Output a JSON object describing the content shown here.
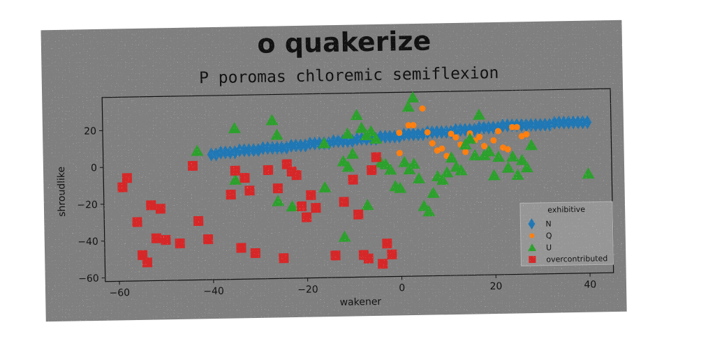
{
  "chart_data": {
    "type": "scatter",
    "title": "o quakerize",
    "subtitle": "P poromas chloremic semiflexion",
    "xlabel": "wakener",
    "ylabel": "shroudlike",
    "xlim": [
      -63,
      45
    ],
    "ylim": [
      -62,
      38
    ],
    "xticks": [
      -60,
      -40,
      -20,
      0,
      20,
      40
    ],
    "yticks": [
      -60,
      -40,
      -20,
      0,
      20
    ],
    "grid": false,
    "legend": {
      "title": "exhibitive",
      "placement": "lower-right"
    },
    "series": [
      {
        "name": "N",
        "marker": "diamond",
        "color": "#1f77b4",
        "points": [
          [
            -40,
            6
          ],
          [
            -39,
            6
          ],
          [
            -38,
            7
          ],
          [
            -37,
            7
          ],
          [
            -36,
            7
          ],
          [
            -35,
            7
          ],
          [
            -34,
            8
          ],
          [
            -33,
            8
          ],
          [
            -32,
            8
          ],
          [
            -31,
            8
          ],
          [
            -30,
            8
          ],
          [
            -29,
            9
          ],
          [
            -28,
            9
          ],
          [
            -27,
            9
          ],
          [
            -26,
            9
          ],
          [
            -25,
            9
          ],
          [
            -24,
            9
          ],
          [
            -23,
            10
          ],
          [
            -22,
            10
          ],
          [
            -21,
            10
          ],
          [
            -20,
            10
          ],
          [
            -19,
            11
          ],
          [
            -18,
            11
          ],
          [
            -17,
            11
          ],
          [
            -16,
            11
          ],
          [
            -15,
            11
          ],
          [
            -14,
            12
          ],
          [
            -13,
            12
          ],
          [
            -12,
            12
          ],
          [
            -11,
            12
          ],
          [
            -10,
            12
          ],
          [
            -9,
            13
          ],
          [
            -8,
            13
          ],
          [
            -7,
            13
          ],
          [
            -6,
            13
          ],
          [
            -5,
            13
          ],
          [
            -4,
            14
          ],
          [
            -3,
            14
          ],
          [
            -2,
            14
          ],
          [
            -1,
            14
          ],
          [
            0,
            14
          ],
          [
            1,
            15
          ],
          [
            2,
            15
          ],
          [
            3,
            15
          ],
          [
            4,
            15
          ],
          [
            5,
            15
          ],
          [
            6,
            16
          ],
          [
            7,
            16
          ],
          [
            8,
            16
          ],
          [
            9,
            16
          ],
          [
            10,
            16
          ],
          [
            11,
            16
          ],
          [
            12,
            17
          ],
          [
            13,
            17
          ],
          [
            14,
            17
          ],
          [
            15,
            17
          ],
          [
            16,
            17
          ],
          [
            17,
            18
          ],
          [
            18,
            18
          ],
          [
            19,
            18
          ],
          [
            20,
            18
          ],
          [
            21,
            18
          ],
          [
            22,
            19
          ],
          [
            23,
            19
          ],
          [
            24,
            19
          ],
          [
            25,
            19
          ],
          [
            26,
            19
          ],
          [
            27,
            19
          ],
          [
            28,
            19
          ],
          [
            29,
            19
          ],
          [
            30,
            19
          ],
          [
            31,
            19
          ],
          [
            32,
            19
          ],
          [
            33,
            20
          ],
          [
            34,
            20
          ],
          [
            35,
            20
          ],
          [
            36,
            20
          ],
          [
            37,
            20
          ],
          [
            38,
            20
          ],
          [
            39,
            20
          ],
          [
            40,
            20
          ]
        ]
      },
      {
        "name": "Q",
        "marker": "circle",
        "color": "#ff7f0e",
        "points": [
          [
            2,
            20
          ],
          [
            3,
            20
          ],
          [
            5,
            29
          ],
          [
            6,
            16
          ],
          [
            7,
            10
          ],
          [
            8,
            6
          ],
          [
            9,
            7
          ],
          [
            10,
            3
          ],
          [
            11,
            15
          ],
          [
            12,
            13
          ],
          [
            13,
            9
          ],
          [
            14,
            5
          ],
          [
            15,
            15
          ],
          [
            16,
            11
          ],
          [
            17,
            13
          ],
          [
            18,
            8
          ],
          [
            19,
            4
          ],
          [
            20,
            11
          ],
          [
            21,
            16
          ],
          [
            22,
            7
          ],
          [
            23,
            6
          ],
          [
            24,
            18
          ],
          [
            25,
            18
          ],
          [
            26,
            13
          ],
          [
            27,
            14
          ],
          [
            0,
            16
          ],
          [
            0,
            5
          ]
        ]
      },
      {
        "name": "U",
        "marker": "triangle",
        "color": "#2ca02c",
        "points": [
          [
            -43,
            8
          ],
          [
            -35,
            20
          ],
          [
            -27,
            24
          ],
          [
            -26,
            16
          ],
          [
            -16,
            11
          ],
          [
            -16,
            -13
          ],
          [
            -12,
            1
          ],
          [
            -11,
            16
          ],
          [
            -10,
            5
          ],
          [
            -9,
            26
          ],
          [
            -8,
            19
          ],
          [
            -7,
            15
          ],
          [
            -6,
            17
          ],
          [
            -5,
            13
          ],
          [
            -4,
            0
          ],
          [
            -3,
            -1
          ],
          [
            -2,
            -4
          ],
          [
            -1,
            -13
          ],
          [
            0,
            -14
          ],
          [
            1,
            0
          ],
          [
            2,
            -4
          ],
          [
            3,
            -1
          ],
          [
            4,
            -9
          ],
          [
            5,
            -24
          ],
          [
            6,
            -27
          ],
          [
            7,
            -17
          ],
          [
            8,
            -8
          ],
          [
            9,
            -10
          ],
          [
            10,
            -6
          ],
          [
            11,
            2
          ],
          [
            12,
            -3
          ],
          [
            13,
            -5
          ],
          [
            14,
            9
          ],
          [
            15,
            12
          ],
          [
            16,
            3
          ],
          [
            17,
            25
          ],
          [
            18,
            3
          ],
          [
            19,
            5
          ],
          [
            20,
            -8
          ],
          [
            21,
            2
          ],
          [
            23,
            -4
          ],
          [
            24,
            2
          ],
          [
            25,
            -8
          ],
          [
            26,
            0
          ],
          [
            27,
            -4
          ],
          [
            28,
            8
          ],
          [
            -12,
            -40
          ],
          [
            -26,
            -20
          ],
          [
            -23,
            -23
          ],
          [
            -35,
            -8
          ],
          [
            2,
            30
          ],
          [
            3,
            35
          ],
          [
            -11,
            -2
          ],
          [
            -7,
            -23
          ],
          [
            40,
            -8
          ]
        ]
      },
      {
        "name": "overcontributed",
        "marker": "square",
        "color": "#d62728",
        "points": [
          [
            -59,
            -11
          ],
          [
            -58,
            -6
          ],
          [
            -56,
            -30
          ],
          [
            -55,
            -48
          ],
          [
            -54,
            -52
          ],
          [
            -53,
            -21
          ],
          [
            -52,
            -39
          ],
          [
            -51,
            -23
          ],
          [
            -50,
            -40
          ],
          [
            -47,
            -42
          ],
          [
            -44,
            0
          ],
          [
            -43,
            -30
          ],
          [
            -41,
            -40
          ],
          [
            -36,
            -16
          ],
          [
            -35,
            -3
          ],
          [
            -34,
            -45
          ],
          [
            -33,
            -7
          ],
          [
            -32,
            -14
          ],
          [
            -31,
            -48
          ],
          [
            -28,
            -3
          ],
          [
            -26,
            -13
          ],
          [
            -25,
            -51
          ],
          [
            -24,
            0
          ],
          [
            -23,
            -4
          ],
          [
            -22,
            -6
          ],
          [
            -21,
            -23
          ],
          [
            -20,
            -29
          ],
          [
            -19,
            -17
          ],
          [
            -18,
            -24
          ],
          [
            -14,
            -50
          ],
          [
            -12,
            -21
          ],
          [
            -10,
            -9
          ],
          [
            -9,
            -28
          ],
          [
            -8,
            -50
          ],
          [
            -7,
            -52
          ],
          [
            -6,
            -4
          ],
          [
            -5,
            3
          ],
          [
            -4,
            -55
          ],
          [
            -3,
            -44
          ],
          [
            -2,
            -50
          ]
        ]
      }
    ]
  }
}
